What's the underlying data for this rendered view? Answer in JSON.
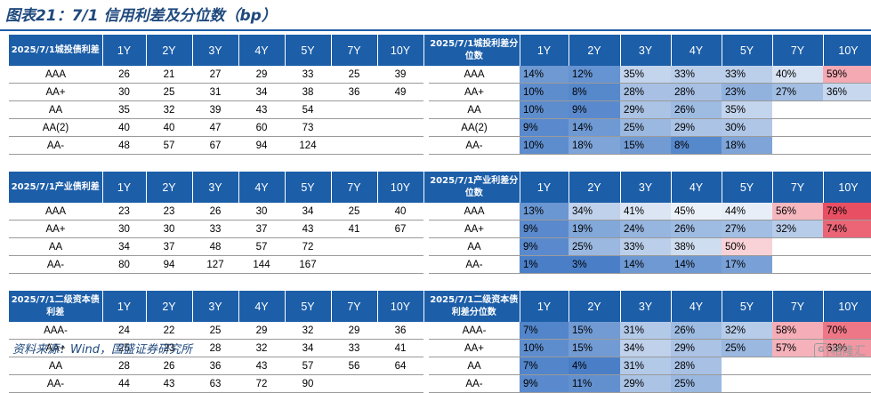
{
  "title": "图表21：7/1 信用利差及分位数（bp）",
  "footer": "资料来源：Wind，国盛证券研究所",
  "watermark": {
    "logo": "G",
    "text": "格隆汇"
  },
  "colors": {
    "header_bg": "#1c5ea8",
    "blue_scale": "#4a7fc8",
    "red_scale": "#e84a5f"
  },
  "tenors": [
    "1Y",
    "2Y",
    "3Y",
    "4Y",
    "5Y",
    "7Y",
    "10Y"
  ],
  "blocks": [
    {
      "left_header": "2025/7/1城投债利差",
      "right_header": "2025/7/1城投利差分位数",
      "rows": [
        {
          "rating": "AAA",
          "spreads": [
            "26",
            "21",
            "27",
            "29",
            "33",
            "25",
            "39"
          ],
          "pcts": [
            "14%",
            "12%",
            "35%",
            "33%",
            "33%",
            "40%",
            "59%"
          ]
        },
        {
          "rating": "AA+",
          "spreads": [
            "30",
            "25",
            "31",
            "34",
            "38",
            "36",
            "49"
          ],
          "pcts": [
            "10%",
            "8%",
            "28%",
            "28%",
            "23%",
            "27%",
            "36%"
          ]
        },
        {
          "rating": "AA",
          "spreads": [
            "35",
            "32",
            "39",
            "43",
            "54",
            "",
            ""
          ],
          "pcts": [
            "10%",
            "9%",
            "29%",
            "26%",
            "35%",
            "",
            ""
          ]
        },
        {
          "rating": "AA(2)",
          "spreads": [
            "40",
            "40",
            "47",
            "60",
            "73",
            "",
            ""
          ],
          "pcts": [
            "9%",
            "14%",
            "25%",
            "29%",
            "30%",
            "",
            ""
          ]
        },
        {
          "rating": "AA-",
          "spreads": [
            "48",
            "57",
            "67",
            "94",
            "124",
            "",
            ""
          ],
          "pcts": [
            "10%",
            "18%",
            "15%",
            "8%",
            "18%",
            "",
            ""
          ]
        }
      ]
    },
    {
      "left_header": "2025/7/1产业债利差",
      "right_header": "2025/7/1产业利差分位数",
      "rows": [
        {
          "rating": "AAA",
          "spreads": [
            "23",
            "23",
            "26",
            "30",
            "34",
            "25",
            "40"
          ],
          "pcts": [
            "13%",
            "34%",
            "41%",
            "45%",
            "44%",
            "56%",
            "79%"
          ]
        },
        {
          "rating": "AA+",
          "spreads": [
            "30",
            "30",
            "33",
            "37",
            "43",
            "41",
            "67"
          ],
          "pcts": [
            "9%",
            "19%",
            "24%",
            "26%",
            "27%",
            "32%",
            "74%"
          ]
        },
        {
          "rating": "AA",
          "spreads": [
            "34",
            "37",
            "48",
            "57",
            "72",
            "",
            ""
          ],
          "pcts": [
            "9%",
            "25%",
            "33%",
            "38%",
            "50%",
            "",
            ""
          ]
        },
        {
          "rating": "AA-",
          "spreads": [
            "80",
            "94",
            "127",
            "144",
            "167",
            "",
            ""
          ],
          "pcts": [
            "1%",
            "3%",
            "14%",
            "14%",
            "17%",
            "",
            ""
          ]
        }
      ]
    },
    {
      "left_header": "2025/7/1二级资本债利差",
      "right_header": "2025/7/1二级资本债利差分位数",
      "rows": [
        {
          "rating": "AAA-",
          "spreads": [
            "24",
            "22",
            "25",
            "29",
            "32",
            "29",
            "36"
          ],
          "pcts": [
            "7%",
            "15%",
            "31%",
            "26%",
            "32%",
            "58%",
            "70%"
          ]
        },
        {
          "rating": "AA+",
          "spreads": [
            "25",
            "23",
            "28",
            "32",
            "34",
            "33",
            "41"
          ],
          "pcts": [
            "10%",
            "15%",
            "34%",
            "29%",
            "25%",
            "57%",
            "63%"
          ]
        },
        {
          "rating": "AA",
          "spreads": [
            "28",
            "26",
            "36",
            "43",
            "57",
            "56",
            "64"
          ],
          "pcts": [
            "7%",
            "4%",
            "31%",
            "28%",
            "",
            "",
            " "
          ]
        },
        {
          "rating": "AA-",
          "spreads": [
            "44",
            "43",
            "63",
            "72",
            "90",
            "",
            ""
          ],
          "pcts": [
            "9%",
            "11%",
            "29%",
            "25%",
            "",
            "",
            ""
          ]
        }
      ]
    }
  ]
}
